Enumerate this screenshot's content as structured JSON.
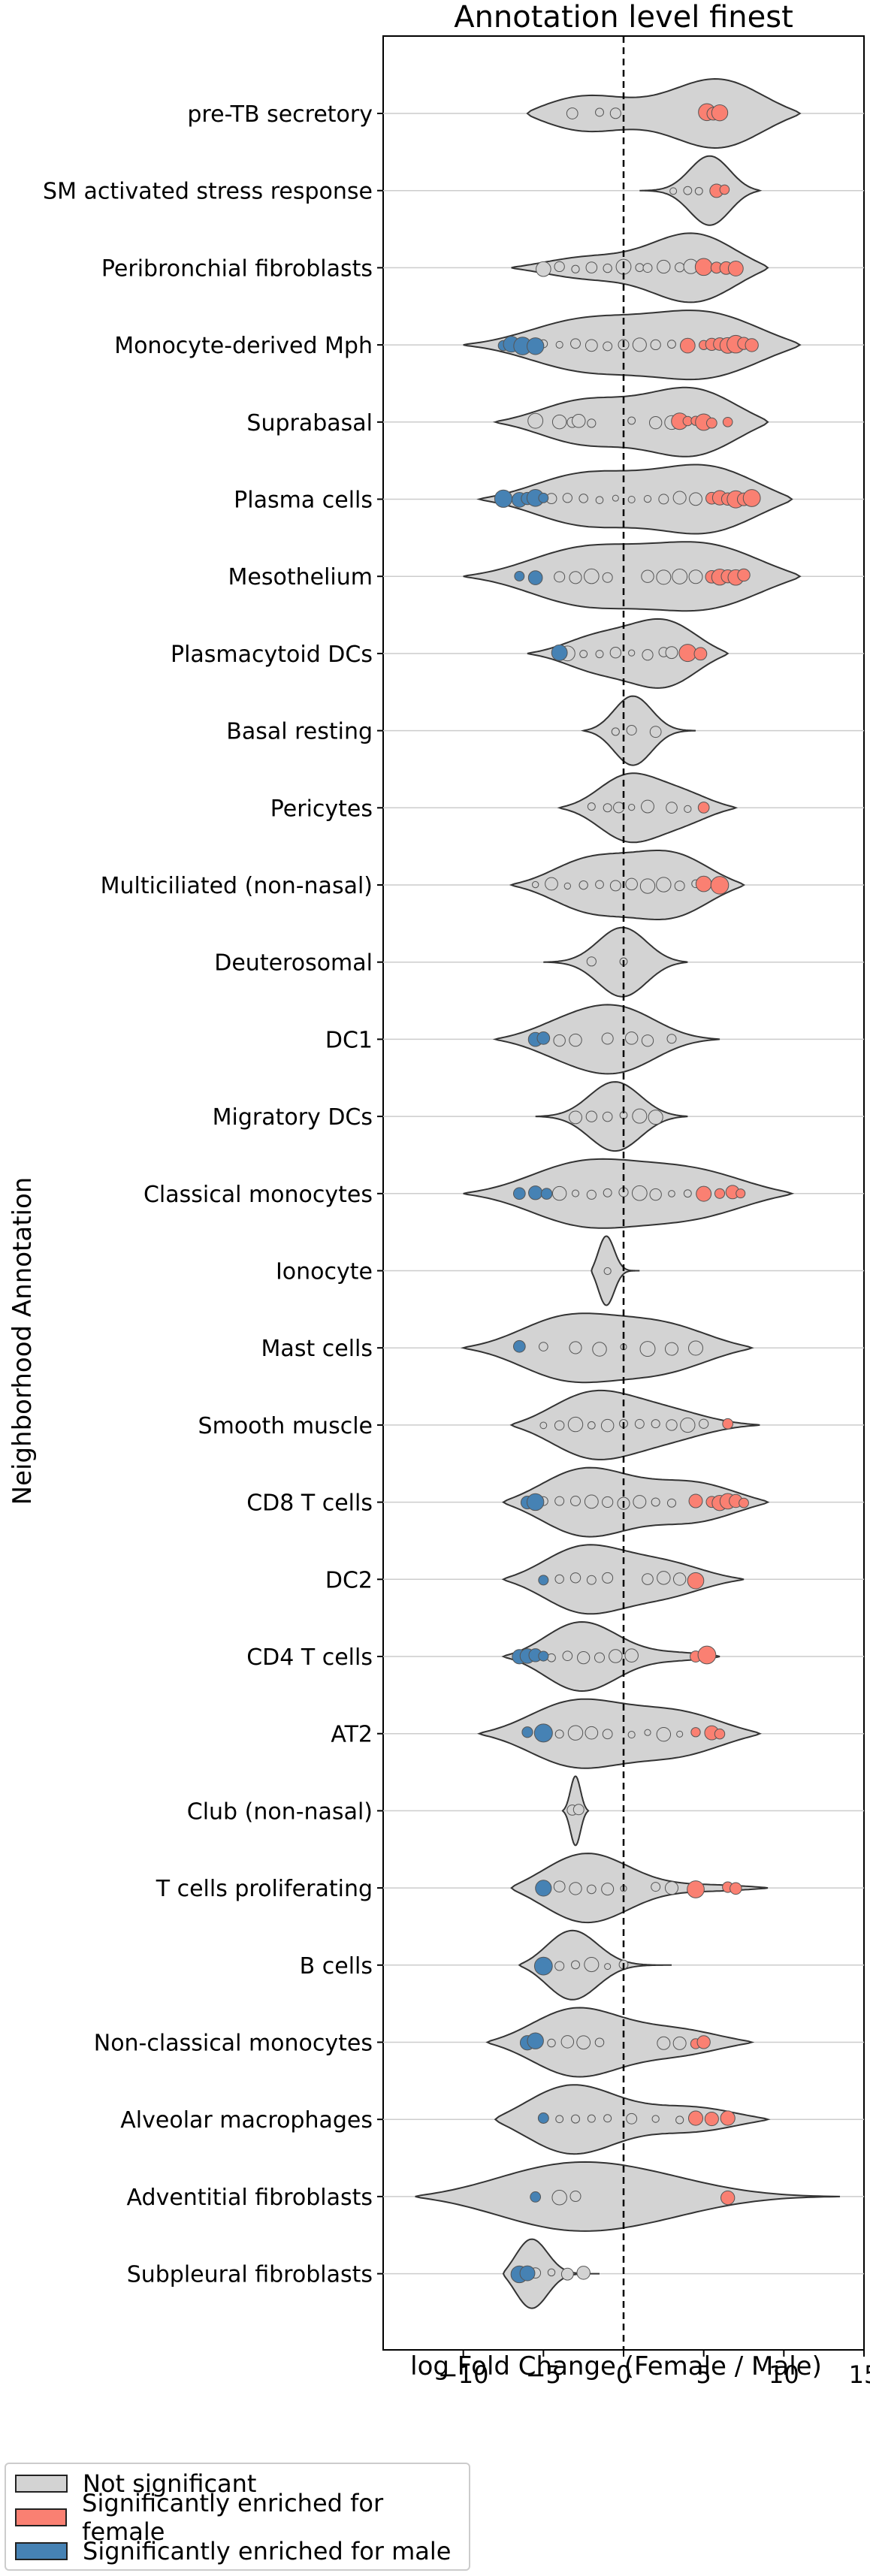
{
  "chart_data": {
    "type": "violin",
    "title": "Annotation level finest",
    "xlabel": "log Fold Change (Female / Male)",
    "ylabel": "Neighborhood Annotation",
    "xlim": [
      -15,
      15
    ],
    "xticks": [
      -10,
      -5,
      0,
      5,
      10,
      15
    ],
    "xtick_labels": [
      "−10",
      "−5",
      "0",
      "5",
      "10",
      "15"
    ],
    "reference_line": {
      "x": 0,
      "style": "dashed"
    },
    "grid": "horizontal",
    "colors": {
      "not_significant": "#d3d3d3",
      "female": "#fa8072",
      "male": "#4682b4",
      "violin_fill": "#d3d3d3",
      "edge": "#333333"
    },
    "legend": {
      "position": "bottom-left",
      "items": [
        {
          "label": "Not significant",
          "color": "#d3d3d3"
        },
        {
          "label": "Significantly enriched for female",
          "color": "#fa8072"
        },
        {
          "label": "Significantly enriched for male",
          "color": "#4682b4"
        }
      ]
    },
    "categories": [
      {
        "name": "pre-TB secretory",
        "range": [
          -6,
          11
        ],
        "modes": [
          [
            -3.5,
            0.5
          ],
          [
            6.5,
            0.8
          ]
        ],
        "female": [
          5.2,
          5.6,
          6.0
        ],
        "male": [],
        "ns": [
          -3.2,
          -1.5,
          -0.5
        ]
      },
      {
        "name": "SM activated stress response",
        "range": [
          1,
          8.5
        ],
        "modes": [
          [
            5.5,
            1
          ]
        ],
        "female": [
          5.8,
          6.3
        ],
        "male": [],
        "ns": [
          3.1,
          4.0,
          4.7
        ]
      },
      {
        "name": "Peribronchial fibroblasts",
        "range": [
          -7,
          9
        ],
        "modes": [
          [
            -3,
            0.3
          ],
          [
            5,
            1
          ]
        ],
        "female": [
          5.0,
          5.8,
          6.4,
          7.0
        ],
        "male": [],
        "ns": [
          -5.0,
          -4.0,
          -3.0,
          -2.0,
          -1.0,
          0.0,
          1.0,
          1.5,
          2.5,
          3.5,
          4.2
        ]
      },
      {
        "name": "Monocyte-derived Mph",
        "range": [
          -10,
          11
        ],
        "modes": [
          [
            -3,
            0.7
          ],
          [
            6,
            1
          ]
        ],
        "female": [
          4.0,
          5.0,
          5.5,
          6.0,
          6.5,
          7.0,
          7.5,
          8.0
        ],
        "male": [
          -7.5,
          -7.0,
          -6.3,
          -5.5
        ],
        "ns": [
          -5.0,
          -4.0,
          -3.0,
          -2.0,
          -1.0,
          0.0,
          1.0,
          2.0,
          3.0
        ]
      },
      {
        "name": "Suprabasal",
        "range": [
          -8,
          9
        ],
        "modes": [
          [
            -3,
            0.6
          ],
          [
            5,
            1
          ]
        ],
        "female": [
          3.5,
          4.0,
          4.5,
          5.0,
          5.5,
          6.5
        ],
        "male": [],
        "ns": [
          -5.5,
          -4.0,
          -3.2,
          -2.8,
          -2.0,
          0.5,
          2.0,
          3.0
        ]
      },
      {
        "name": "Plasma cells",
        "range": [
          -9,
          10.5
        ],
        "modes": [
          [
            -3,
            0.7
          ],
          [
            6,
            1
          ]
        ],
        "female": [
          5.5,
          6.0,
          6.5,
          7.0,
          7.5,
          8.0
        ],
        "male": [
          -7.5,
          -6.5,
          -6.0,
          -5.5,
          -5.0
        ],
        "ns": [
          -4.5,
          -3.5,
          -2.5,
          -1.5,
          -0.5,
          0.5,
          1.5,
          2.5,
          3.5,
          4.5
        ]
      },
      {
        "name": "Mesothelium",
        "range": [
          -10,
          11
        ],
        "modes": [
          [
            -3,
            0.8
          ],
          [
            6,
            1
          ]
        ],
        "female": [
          5.5,
          6.0,
          6.5,
          7.0,
          7.5
        ],
        "male": [
          -6.5,
          -5.5
        ],
        "ns": [
          -4.0,
          -3.0,
          -2.0,
          -1.0,
          1.5,
          2.5,
          3.5,
          4.5
        ]
      },
      {
        "name": "Plasmacytoid DCs",
        "range": [
          -6,
          6.5
        ],
        "modes": [
          [
            -2,
            0.5
          ],
          [
            3,
            1
          ]
        ],
        "female": [
          4.0,
          4.8
        ],
        "male": [
          -4.0
        ],
        "ns": [
          -3.5,
          -2.5,
          -1.5,
          -0.5,
          0.5,
          1.5,
          2.5,
          3.0
        ]
      },
      {
        "name": "Basal resting",
        "range": [
          -2.5,
          4.5
        ],
        "modes": [
          [
            0.5,
            1
          ]
        ],
        "female": [],
        "male": [],
        "ns": [
          -0.5,
          0.5,
          2.0
        ]
      },
      {
        "name": "Pericytes",
        "range": [
          -4,
          7
        ],
        "modes": [
          [
            0,
            1
          ],
          [
            4,
            0.5
          ]
        ],
        "female": [
          5.0
        ],
        "male": [],
        "ns": [
          -2.0,
          -1.0,
          -0.3,
          0.5,
          1.5,
          3.0,
          4.0
        ]
      },
      {
        "name": "Multiciliated (non-nasal)",
        "range": [
          -7,
          7.5
        ],
        "modes": [
          [
            -2.5,
            0.8
          ],
          [
            3.5,
            1
          ]
        ],
        "female": [
          5.0,
          6.0
        ],
        "male": [],
        "ns": [
          -5.5,
          -4.5,
          -3.5,
          -2.5,
          -1.5,
          -0.5,
          0.5,
          1.5,
          2.5,
          3.5,
          4.5
        ]
      },
      {
        "name": "Deuterosomal",
        "range": [
          -5,
          4
        ],
        "modes": [
          [
            0,
            1
          ]
        ],
        "female": [],
        "male": [],
        "ns": [
          -2.0,
          0.0
        ]
      },
      {
        "name": "DC1",
        "range": [
          -8,
          6
        ],
        "modes": [
          [
            -4,
            0.6
          ],
          [
            0,
            1
          ]
        ],
        "female": [],
        "male": [
          -5.5,
          -5.0
        ],
        "ns": [
          -4.0,
          -3.0,
          -1.0,
          0.5,
          1.5,
          3.0
        ]
      },
      {
        "name": "Migratory DCs",
        "range": [
          -5.5,
          4
        ],
        "modes": [
          [
            -0.5,
            1
          ]
        ],
        "female": [],
        "male": [],
        "ns": [
          -3.0,
          -2.0,
          -1.0,
          0.0,
          1.0,
          2.0
        ]
      },
      {
        "name": "Classical monocytes",
        "range": [
          -10,
          10.5
        ],
        "modes": [
          [
            -3,
            1
          ],
          [
            5,
            0.8
          ]
        ],
        "female": [
          5.0,
          6.0,
          6.8,
          7.3
        ],
        "male": [
          -6.5,
          -5.5,
          -4.8
        ],
        "ns": [
          -4.0,
          -3.0,
          -2.0,
          -1.0,
          0.0,
          1.0,
          2.0,
          3.0,
          4.0
        ]
      },
      {
        "name": "Ionocyte",
        "range": [
          -2,
          1
        ],
        "modes": [
          [
            -1.2,
            1
          ]
        ],
        "female": [],
        "male": [],
        "ns": [
          -1.0
        ]
      },
      {
        "name": "Mast cells",
        "range": [
          -10,
          8
        ],
        "modes": [
          [
            -4,
            1
          ],
          [
            3,
            0.8
          ]
        ],
        "female": [],
        "male": [
          -6.5
        ],
        "ns": [
          -5.0,
          -3.0,
          -1.5,
          0.0,
          1.5,
          3.0,
          4.5
        ]
      },
      {
        "name": "Smooth muscle",
        "range": [
          -7,
          8.5
        ],
        "modes": [
          [
            -2.5,
            1
          ],
          [
            3,
            0.4
          ]
        ],
        "female": [
          6.5
        ],
        "male": [],
        "ns": [
          -5.0,
          -4.0,
          -3.0,
          -2.0,
          -1.0,
          0.0,
          1.0,
          2.0,
          3.0,
          4.0,
          5.0
        ]
      },
      {
        "name": "CD8 T cells",
        "range": [
          -7.5,
          9
        ],
        "modes": [
          [
            -3,
            1
          ],
          [
            5,
            0.6
          ]
        ],
        "female": [
          4.5,
          5.5,
          6.0,
          6.5,
          7.0,
          7.5
        ],
        "male": [
          -6.0,
          -5.5
        ],
        "ns": [
          -5.0,
          -4.0,
          -3.0,
          -2.0,
          -1.0,
          0.0,
          1.0,
          2.0,
          3.0
        ]
      },
      {
        "name": "DC2",
        "range": [
          -7.5,
          7.5
        ],
        "modes": [
          [
            -3,
            1
          ],
          [
            3,
            0.5
          ]
        ],
        "female": [
          4.5
        ],
        "male": [
          -5.0
        ],
        "ns": [
          -4.0,
          -3.0,
          -2.0,
          -1.0,
          1.5,
          2.5,
          3.5
        ]
      },
      {
        "name": "CD4 T cells",
        "range": [
          -7.5,
          6
        ],
        "modes": [
          [
            -3,
            1
          ],
          [
            4.5,
            0.15
          ]
        ],
        "female": [
          4.5,
          5.2
        ],
        "male": [
          -6.5,
          -6.0,
          -5.5,
          -5.0
        ],
        "ns": [
          -4.5,
          -3.5,
          -2.5,
          -1.5,
          -0.5,
          0.5
        ]
      },
      {
        "name": "AT2",
        "range": [
          -9,
          8.5
        ],
        "modes": [
          [
            -3.5,
            1
          ],
          [
            4,
            0.7
          ]
        ],
        "female": [
          4.5,
          5.5,
          6.0
        ],
        "male": [
          -6.0,
          -5.0
        ],
        "ns": [
          -4.0,
          -3.0,
          -2.0,
          -1.0,
          0.5,
          1.5,
          2.5,
          3.5
        ]
      },
      {
        "name": "Club (non-nasal)",
        "range": [
          -3.8,
          -2.2
        ],
        "modes": [
          [
            -3,
            1
          ]
        ],
        "female": [],
        "male": [],
        "ns": [
          -3.2,
          -2.8
        ]
      },
      {
        "name": "T cells proliferating",
        "range": [
          -7,
          9
        ],
        "modes": [
          [
            -3,
            1
          ],
          [
            6.5,
            0.1
          ]
        ],
        "female": [
          4.5,
          6.5,
          7.0
        ],
        "male": [
          -5.0
        ],
        "ns": [
          -4.0,
          -3.0,
          -2.0,
          -1.0,
          0.0,
          2.0,
          3.0
        ]
      },
      {
        "name": "B cells",
        "range": [
          -6.5,
          3
        ],
        "modes": [
          [
            -3.5,
            1
          ]
        ],
        "female": [],
        "male": [
          -5.0
        ],
        "ns": [
          -4.0,
          -3.0,
          -2.0,
          -1.0,
          0.0
        ]
      },
      {
        "name": "Non-classical monocytes",
        "range": [
          -8.5,
          8
        ],
        "modes": [
          [
            -3.5,
            1
          ],
          [
            4,
            0.4
          ]
        ],
        "female": [
          4.5,
          5.0
        ],
        "male": [
          -6.0,
          -5.5
        ],
        "ns": [
          -4.5,
          -3.5,
          -2.5,
          -1.5,
          2.5,
          3.5
        ]
      },
      {
        "name": "Alveolar macrophages",
        "range": [
          -8,
          9
        ],
        "modes": [
          [
            -4,
            1
          ],
          [
            5,
            0.35
          ]
        ],
        "female": [
          4.5,
          5.5,
          6.5
        ],
        "male": [
          -5.0
        ],
        "ns": [
          -4.0,
          -3.0,
          -2.0,
          -1.0,
          0.5,
          2.0,
          3.5
        ]
      },
      {
        "name": "Adventitial fibroblasts",
        "range": [
          -13,
          13.5
        ],
        "modes": [
          [
            -5,
            0.9
          ],
          [
            1.5,
            0.5
          ]
        ],
        "female": [
          6.5
        ],
        "male": [
          -5.5
        ],
        "ns": [
          -4.0,
          -3.0
        ]
      },
      {
        "name": "Subpleural fibroblasts",
        "range": [
          -7.5,
          -1.5
        ],
        "modes": [
          [
            -6,
            1
          ]
        ],
        "female": [],
        "male": [
          -6.5,
          -6.0
        ],
        "ns": [
          -5.5,
          -4.5,
          -3.5,
          -2.5
        ]
      }
    ]
  }
}
